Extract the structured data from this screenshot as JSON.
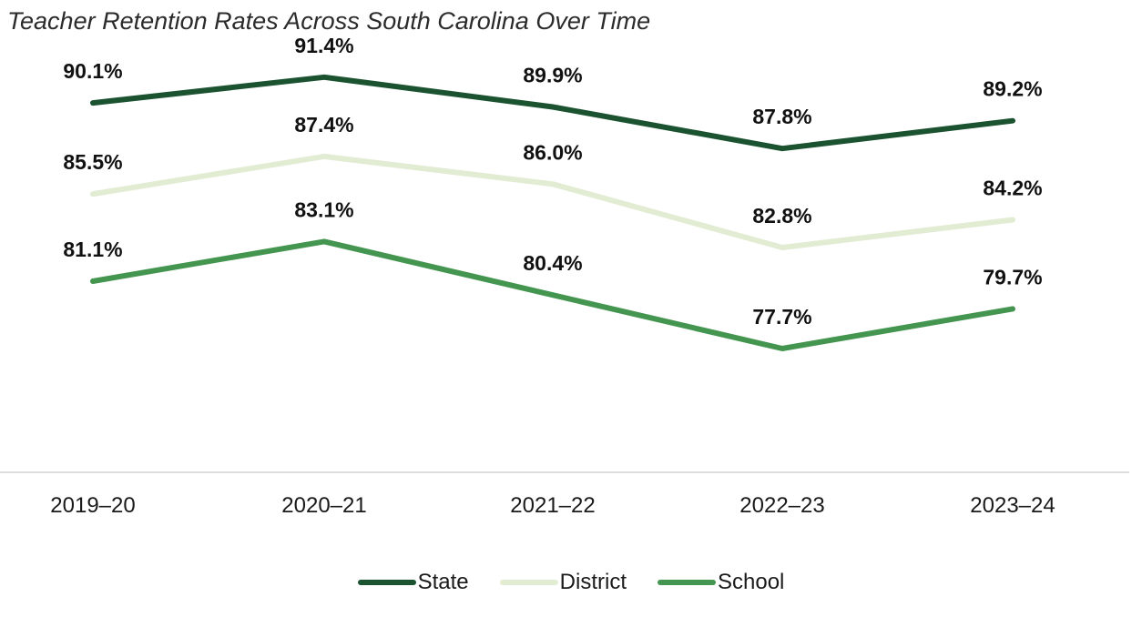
{
  "title": "Teacher Retention Rates Across South Carolina Over Time",
  "chart_data": {
    "type": "line",
    "title": "Teacher Retention Rates Across South Carolina Over Time",
    "categories": [
      "2019–20",
      "2020–21",
      "2021–22",
      "2022–23",
      "2023–24"
    ],
    "series": [
      {
        "name": "State",
        "color": "#1b5230",
        "values": [
          90.1,
          91.4,
          89.9,
          87.8,
          89.2
        ],
        "labels": [
          "90.1%",
          "91.4%",
          "89.9%",
          "87.8%",
          "89.2%"
        ]
      },
      {
        "name": "District",
        "color": "#e1ecd2",
        "values": [
          85.5,
          87.4,
          86.0,
          82.8,
          84.2
        ],
        "labels": [
          "85.5%",
          "87.4%",
          "86.0%",
          "82.8%",
          "84.2%"
        ]
      },
      {
        "name": "School",
        "color": "#44954f",
        "values": [
          81.1,
          83.1,
          80.4,
          77.7,
          79.7
        ],
        "labels": [
          "81.1%",
          "83.1%",
          "80.4%",
          "77.7%",
          "79.7%"
        ]
      }
    ],
    "ylim": [
      72,
      93
    ],
    "grid": false,
    "legend": "bottom-center",
    "xlabel": "",
    "ylabel": ""
  }
}
